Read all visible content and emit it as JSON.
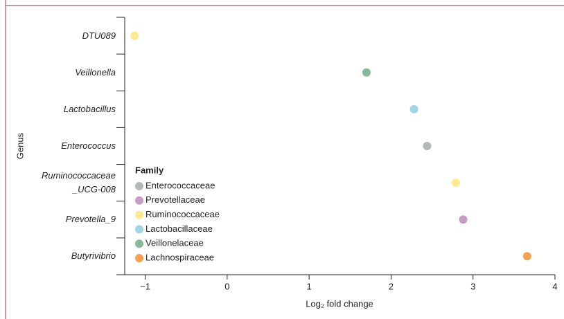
{
  "chart_data": {
    "type": "dot",
    "categories": [
      "DTU089",
      "Veillonella",
      "Lactobacillus",
      "Enterococcus",
      "Ruminococcaceae\n_UCG-008",
      "Prevotella_9",
      "Butyrivibrio"
    ],
    "y_label": "Genus",
    "x_label": "Log₂ fold change",
    "legend_title": "Family",
    "legend": "bottom-left",
    "xlim": [
      -1.25,
      4
    ],
    "xticks": [
      {
        "value": -1,
        "label": "−1"
      },
      0,
      1,
      2,
      3,
      4
    ],
    "series": [
      {
        "name": "Enterococcaceae",
        "color": "#b3b8bb",
        "values": [
          null,
          null,
          null,
          2.44,
          null,
          null,
          null
        ]
      },
      {
        "name": "Prevotellaceae",
        "color": "#c69bc4",
        "values": [
          null,
          null,
          null,
          null,
          null,
          2.88,
          null
        ]
      },
      {
        "name": "Ruminococcaceae",
        "color": "#fde98f",
        "values": [
          -1.13,
          null,
          null,
          null,
          2.79,
          null,
          null
        ]
      },
      {
        "name": "Lactobacillaceae",
        "color": "#9ed4e4",
        "values": [
          null,
          null,
          2.28,
          null,
          null,
          null,
          null
        ]
      },
      {
        "name": "Veillonelaceae",
        "color": "#88b999",
        "values": [
          null,
          1.7,
          null,
          null,
          null,
          null,
          null
        ]
      },
      {
        "name": "Lachnospiraceae",
        "color": "#f5a14f",
        "values": [
          null,
          null,
          null,
          null,
          null,
          null,
          3.66
        ]
      }
    ]
  }
}
